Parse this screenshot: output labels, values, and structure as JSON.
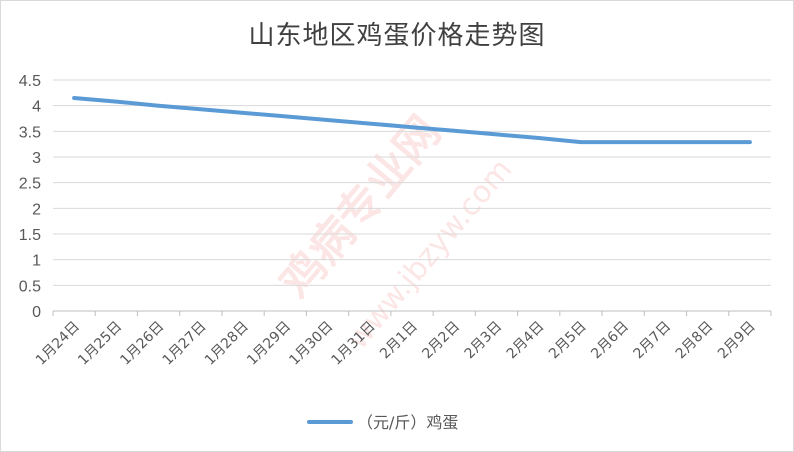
{
  "chart_data": {
    "type": "line",
    "title": "山东地区鸡蛋价格走势图",
    "categories": [
      "1月24日",
      "1月25日",
      "1月26日",
      "1月27日",
      "1月28日",
      "1月29日",
      "1月30日",
      "1月31日",
      "2月1日",
      "2月2日",
      "2月3日",
      "2月4日",
      "2月5日",
      "2月6日",
      "2月7日",
      "2月8日",
      "2月9日"
    ],
    "series": [
      {
        "name": "（元/斤）鸡蛋",
        "color": "#5b9bd5",
        "values": [
          4.15,
          4.08,
          4.0,
          3.93,
          3.86,
          3.79,
          3.72,
          3.65,
          3.58,
          3.51,
          3.44,
          3.37,
          3.29,
          3.29,
          3.29,
          3.29,
          3.29
        ]
      }
    ],
    "ylim": [
      0,
      4.5
    ],
    "yticks": [
      "0",
      "0.5",
      "1",
      "1.5",
      "2",
      "2.5",
      "3",
      "3.5",
      "4",
      "4.5"
    ],
    "grid": true,
    "legend_position": "bottom"
  },
  "watermark": {
    "text": "鸡病专业网",
    "url": "www.jbzyw.com"
  }
}
